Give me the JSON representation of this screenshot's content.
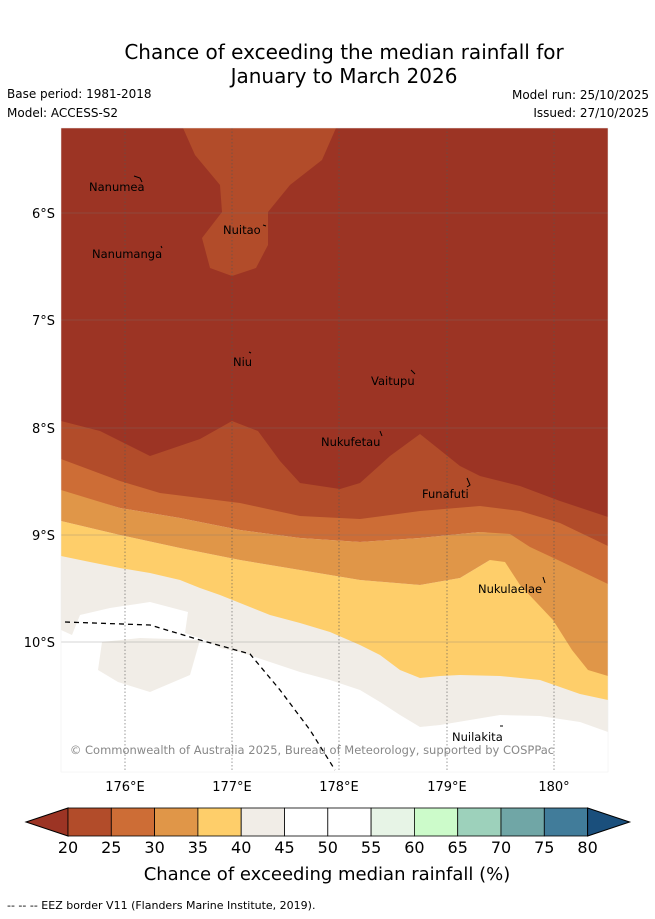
{
  "header": {
    "title_line1": "Chance of exceeding the median rainfall for",
    "title_line2": "January to March 2026",
    "base_period": "Base period: 1981-2018",
    "model": "Model: ACCESS-S2",
    "model_run": "Model run: 25/10/2025",
    "issued": "Issued: 27/10/2025"
  },
  "map": {
    "lat_labels": [
      "6°S",
      "7°S",
      "8°S",
      "9°S",
      "10°S"
    ],
    "lon_labels": [
      "176°E",
      "177°E",
      "178°E",
      "179°E",
      "180°"
    ],
    "places": [
      "Nanumea",
      "Nuitao",
      "Nanumanga",
      "Niu",
      "Vaitupu",
      "Nukufetau",
      "Funafuti",
      "Nukulaelae",
      "Nuilakita"
    ],
    "copyright": "© Commonwealth of Australia 2025, Bureau of Meteorology, supported by COSPPac"
  },
  "legend": {
    "ticks": [
      "20",
      "25",
      "30",
      "35",
      "40",
      "45",
      "50",
      "55",
      "60",
      "65",
      "70",
      "75",
      "80"
    ],
    "colors": [
      "#9c3424",
      "#b24c2a",
      "#cd6d36",
      "#e09648",
      "#fece6a",
      "#f1ede7",
      "#ffffff",
      "#ffffff",
      "#e7f4e6",
      "#ccfbca",
      "#9dd1bb",
      "#70a6a6",
      "#417c9a",
      "#1a4f7c"
    ],
    "label": "Chance of exceeding median rainfall (%)"
  },
  "footer": {
    "eez_note": "-- -- -- EEZ border V11 (Flanders Marine Institute, 2019)."
  }
}
